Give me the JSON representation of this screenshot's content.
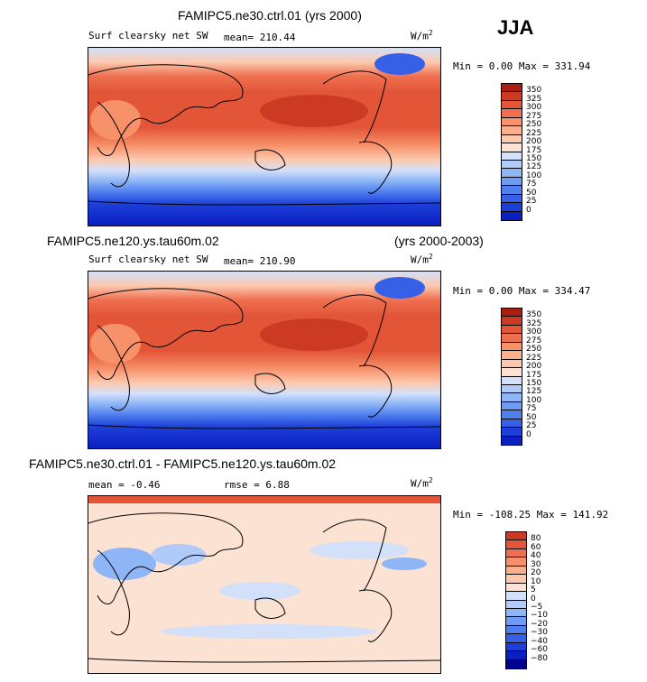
{
  "season": "JJA",
  "colors": {
    "sw": [
      "#00008f",
      "#0a1fc0",
      "#1d3fd9",
      "#3660e6",
      "#4f80ee",
      "#6e9cf2",
      "#8eb5f5",
      "#b0cbf7",
      "#d2e0fa",
      "#fbe2d2",
      "#fcc9ae",
      "#fbaf8b",
      "#f7916a",
      "#ef7050",
      "#e25537",
      "#cc3a24",
      "#a81e12",
      "#800000"
    ],
    "diff": [
      "#00008f",
      "#0a1fc0",
      "#1d3fd9",
      "#3660e6",
      "#4f80ee",
      "#6e9cf2",
      "#8eb5f5",
      "#b0cbf7",
      "#d2e0fa",
      "#fbe2d2",
      "#fcc9ae",
      "#fbaf8b",
      "#f7916a",
      "#ef7050",
      "#e25537",
      "#cc3a24",
      "#800000"
    ]
  },
  "panels": [
    {
      "title": "FAMIPC5.ne30.ctrl.01 (yrs 2000)",
      "variable": "Surf clearsky net SW",
      "mean": "mean= 210.44",
      "units": "W/m",
      "units_exp": "2",
      "minmax": "Min =   0.00 Max = 331.94",
      "ticks": [
        "350",
        "325",
        "300",
        "275",
        "250",
        "225",
        "200",
        "175",
        "150",
        "125",
        "100",
        "75",
        "50",
        "25",
        "0"
      ]
    },
    {
      "title_left": "FAMIPC5.ne120.ys.tau60m.02",
      "title_right": "(yrs 2000-2003)",
      "variable": "Surf clearsky net SW",
      "mean": "mean= 210.90",
      "units": "W/m",
      "units_exp": "2",
      "minmax": "Min =   0.00 Max = 334.47",
      "ticks": [
        "350",
        "325",
        "300",
        "275",
        "250",
        "225",
        "200",
        "175",
        "150",
        "125",
        "100",
        "75",
        "50",
        "25",
        "0"
      ]
    },
    {
      "title": "FAMIPC5.ne30.ctrl.01 - FAMIPC5.ne120.ys.tau60m.02",
      "mean": "mean =  -0.46",
      "rmse": "rmse =   6.88",
      "units": "W/m",
      "units_exp": "2",
      "minmax": "Min = -108.25 Max = 141.92",
      "ticks": [
        "80",
        "60",
        "40",
        "30",
        "20",
        "10",
        "5",
        "0",
        "−5",
        "−10",
        "−20",
        "−30",
        "−40",
        "−60",
        "−80"
      ]
    }
  ]
}
